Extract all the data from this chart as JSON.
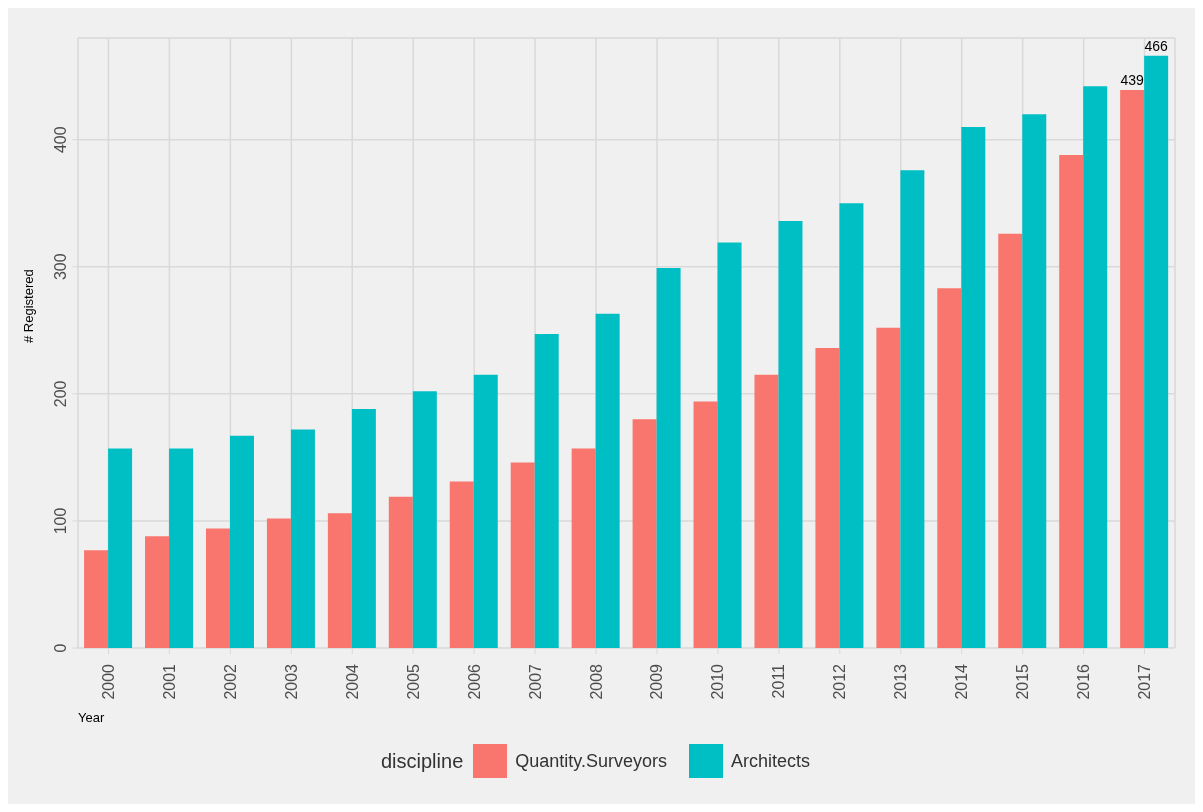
{
  "chart_data": {
    "type": "bar",
    "xlabel": "Year",
    "ylabel": "# Registered",
    "legend_title": "discipline",
    "categories": [
      "2000",
      "2001",
      "2002",
      "2003",
      "2004",
      "2005",
      "2006",
      "2007",
      "2008",
      "2009",
      "2010",
      "2011",
      "2012",
      "2013",
      "2014",
      "2015",
      "2016",
      "2017"
    ],
    "series": [
      {
        "name": "Quantity.Surveyors",
        "color": "#f8766d",
        "values": [
          77,
          88,
          94,
          102,
          106,
          119,
          131,
          146,
          157,
          180,
          194,
          215,
          236,
          252,
          283,
          326,
          388,
          439
        ],
        "value_labels": [
          null,
          null,
          null,
          null,
          null,
          null,
          null,
          null,
          null,
          null,
          null,
          null,
          null,
          null,
          null,
          null,
          null,
          "439"
        ]
      },
      {
        "name": "Architects",
        "color": "#00bfc4",
        "values": [
          157,
          157,
          167,
          172,
          188,
          202,
          215,
          247,
          263,
          299,
          319,
          336,
          350,
          376,
          410,
          420,
          442,
          466
        ],
        "value_labels": [
          null,
          null,
          null,
          null,
          null,
          null,
          null,
          null,
          null,
          null,
          null,
          null,
          null,
          null,
          null,
          null,
          null,
          "466"
        ]
      }
    ],
    "ylim": [
      0,
      480
    ],
    "yticks": [
      0,
      100,
      200,
      300,
      400
    ],
    "grid": true,
    "legend": "bottom"
  }
}
